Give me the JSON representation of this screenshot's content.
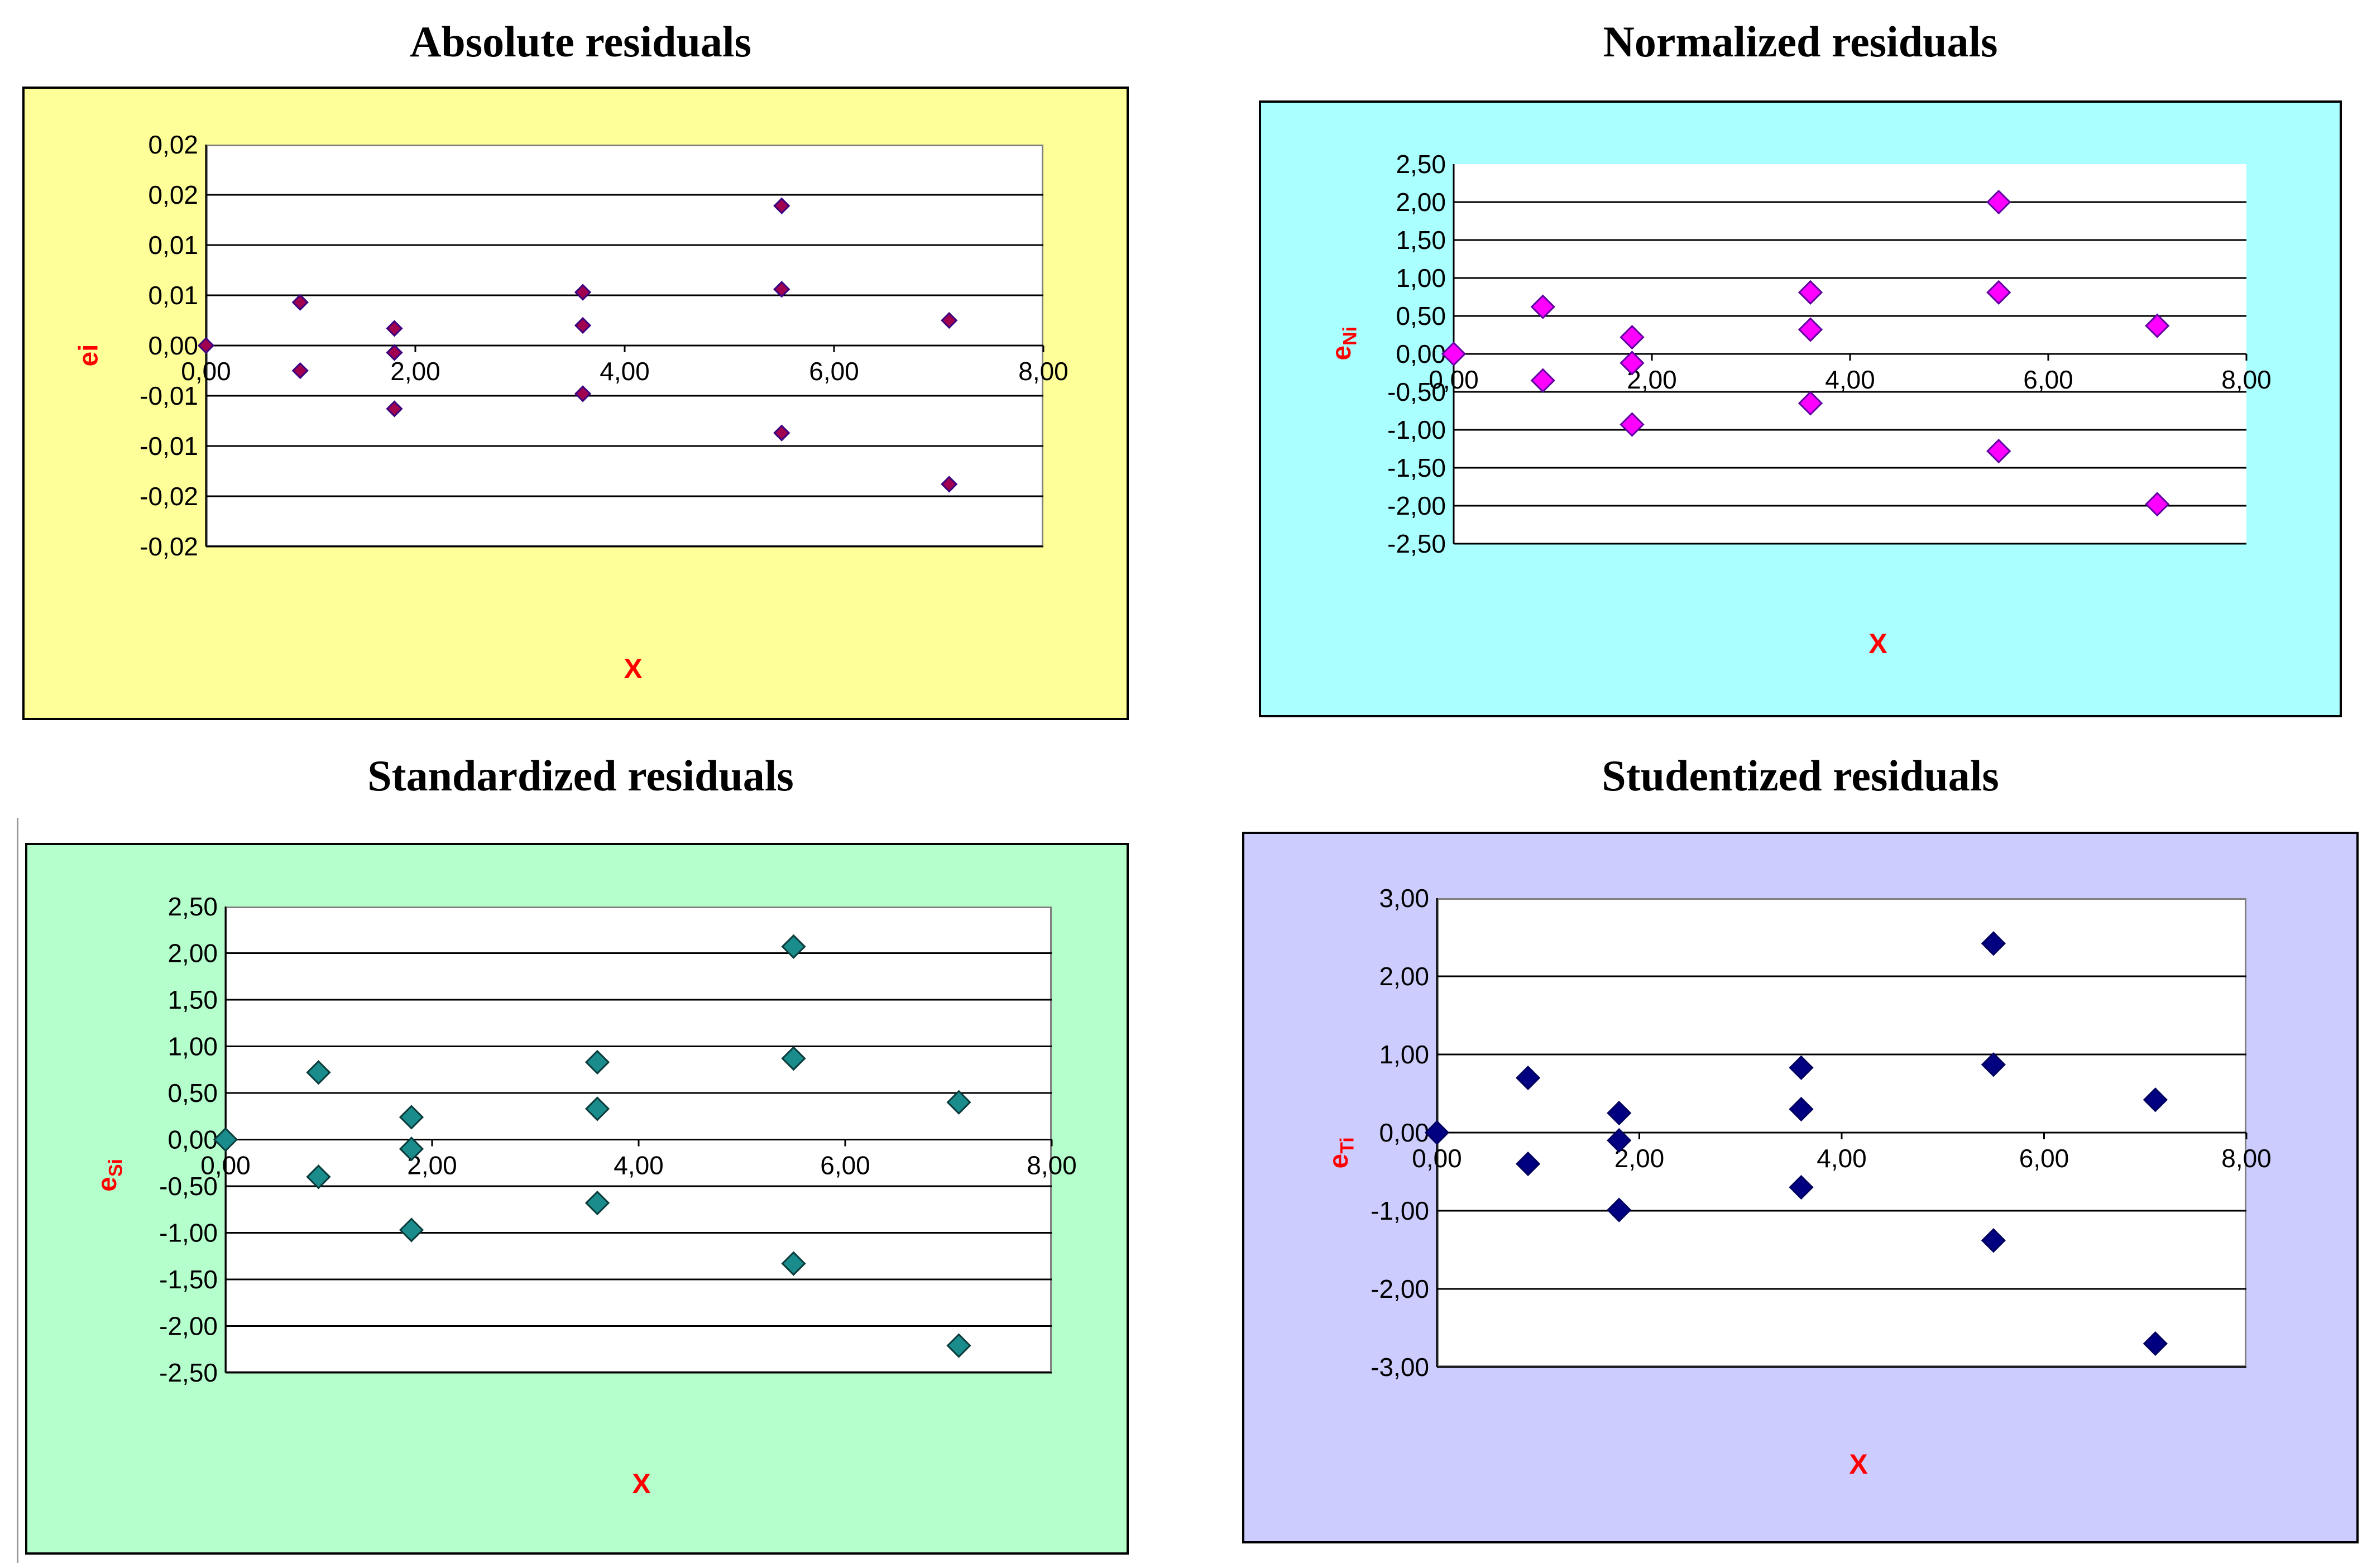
{
  "chart_data": [
    {
      "type": "scatter",
      "title": "Absolute residuals",
      "xlabel": "X",
      "ylabel": "ei",
      "background": "#ffff99",
      "marker_color": "#a0004f",
      "marker_outline": "#3a0080",
      "xlim": [
        0,
        8
      ],
      "ylim": [
        -0.02,
        0.02
      ],
      "xticks": [
        0,
        2,
        4,
        6,
        8
      ],
      "xtick_labels": [
        "0,00",
        "2,00",
        "4,00",
        "6,00",
        "8,00"
      ],
      "yticks": [
        0.02,
        0.015,
        0.01,
        0.005,
        0,
        -0.005,
        -0.01,
        -0.015,
        -0.02
      ],
      "ytick_labels": [
        "0,02",
        "0,02",
        "0,01",
        "0,01",
        "0,00",
        "-0,01",
        "-0,01",
        "-0,02",
        "-0,02"
      ],
      "x": [
        0.0,
        0.9,
        0.9,
        1.8,
        1.8,
        1.8,
        3.6,
        3.6,
        3.6,
        5.5,
        5.5,
        5.5,
        7.1,
        7.1
      ],
      "y": [
        0.0,
        0.0043,
        -0.0025,
        0.0017,
        -0.0007,
        -0.0063,
        0.0053,
        0.002,
        -0.0048,
        0.0139,
        0.0056,
        -0.0087,
        0.0025,
        -0.0138
      ]
    },
    {
      "type": "scatter",
      "title": "Normalized residuals",
      "xlabel": "X",
      "ylabel": "e",
      "ylabel_sub": "Ni",
      "background": "#aaffff",
      "marker_color": "#ff00ff",
      "marker_outline": "#6000a0",
      "xlim": [
        0,
        8
      ],
      "ylim": [
        -2.5,
        2.5
      ],
      "xticks": [
        0,
        2,
        4,
        6,
        8
      ],
      "xtick_labels": [
        "0,00",
        "2,00",
        "4,00",
        "6,00",
        "8,00"
      ],
      "yticks": [
        2.5,
        2.0,
        1.5,
        1.0,
        0.5,
        0,
        -0.5,
        -1.0,
        -1.5,
        -2.0,
        -2.5
      ],
      "ytick_labels": [
        "2,50",
        "2,00",
        "1,50",
        "1,00",
        "0,50",
        "0,00",
        "-0,50",
        "-1,00",
        "-1,50",
        "-2,00",
        "-2,50"
      ],
      "x": [
        0.0,
        0.9,
        0.9,
        1.8,
        1.8,
        1.8,
        3.6,
        3.6,
        3.6,
        5.5,
        5.5,
        5.5,
        7.1,
        7.1
      ],
      "y": [
        0.0,
        0.62,
        -0.35,
        0.22,
        -0.12,
        -0.93,
        0.81,
        0.32,
        -0.65,
        2.0,
        0.81,
        -1.28,
        0.37,
        -1.98
      ]
    },
    {
      "type": "scatter",
      "title": "Standardized residuals",
      "xlabel": "X",
      "ylabel": "e",
      "ylabel_sub": "Si",
      "background": "#b4ffcc",
      "marker_color": "#1a8c8c",
      "marker_outline": "#0a3a3a",
      "xlim": [
        0,
        8
      ],
      "ylim": [
        -2.5,
        2.5
      ],
      "xticks": [
        0,
        2,
        4,
        6,
        8
      ],
      "xtick_labels": [
        "0,00",
        "2,00",
        "4,00",
        "6,00",
        "8,00"
      ],
      "yticks": [
        2.5,
        2.0,
        1.5,
        1.0,
        0.5,
        0,
        -0.5,
        -1.0,
        -1.5,
        -2.0,
        -2.5
      ],
      "ytick_labels": [
        "2,50",
        "2,00",
        "1,50",
        "1,00",
        "0,50",
        "0,00",
        "-0,50",
        "-1,00",
        "-1,50",
        "-2,00",
        "-2,50"
      ],
      "x": [
        0.0,
        0.9,
        0.9,
        1.8,
        1.8,
        1.8,
        3.6,
        3.6,
        3.6,
        5.5,
        5.5,
        5.5,
        7.1,
        7.1
      ],
      "y": [
        0.0,
        0.72,
        -0.4,
        0.24,
        -0.1,
        -0.97,
        0.83,
        0.33,
        -0.68,
        2.07,
        0.87,
        -1.33,
        0.4,
        -2.21
      ]
    },
    {
      "type": "scatter",
      "title": "Studentized residuals",
      "xlabel": "X",
      "ylabel": "e",
      "ylabel_sub": "Ti",
      "background": "#ccccff",
      "marker_color": "#000080",
      "marker_outline": "#000060",
      "xlim": [
        0,
        8
      ],
      "ylim": [
        -3,
        3
      ],
      "xticks": [
        0,
        2,
        4,
        6,
        8
      ],
      "xtick_labels": [
        "0,00",
        "2,00",
        "4,00",
        "6,00",
        "8,00"
      ],
      "yticks": [
        3,
        2,
        1,
        0,
        -1,
        -2,
        -3
      ],
      "ytick_labels": [
        "3,00",
        "2,00",
        "1,00",
        "0,00",
        "-1,00",
        "-2,00",
        "-3,00"
      ],
      "x": [
        0.0,
        0.9,
        0.9,
        1.8,
        1.8,
        1.8,
        3.6,
        3.6,
        3.6,
        5.5,
        5.5,
        5.5,
        7.1,
        7.1
      ],
      "y": [
        0.0,
        0.7,
        -0.4,
        0.25,
        -0.1,
        -0.99,
        0.83,
        0.3,
        -0.7,
        2.42,
        0.87,
        -1.38,
        0.42,
        -2.7
      ]
    }
  ]
}
